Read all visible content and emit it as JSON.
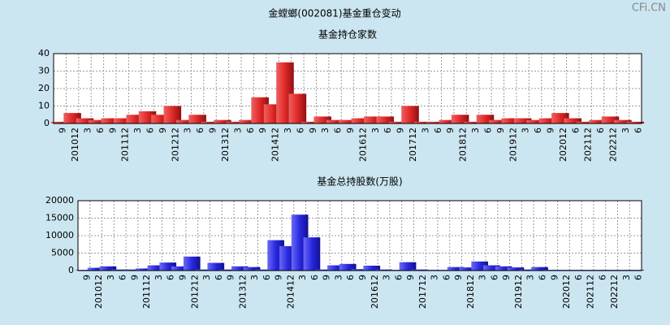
{
  "title": "金螳螂(002081)基金重仓变动",
  "watermark": "CFi.CN",
  "chart_data": [
    {
      "type": "bar",
      "title": "基金持仓家数",
      "color": "#e02828",
      "categories": [
        "9",
        "201012",
        "3",
        "6",
        "9",
        "201112",
        "3",
        "6",
        "9",
        "201212",
        "3",
        "6",
        "9",
        "201312",
        "3",
        "6",
        "9",
        "201412",
        "3",
        "6",
        "9",
        "3",
        "6",
        "9",
        "201612",
        "3",
        "6",
        "9",
        "201712",
        "3",
        "6",
        "9",
        "201812",
        "3",
        "6",
        "9",
        "201912",
        "3",
        "6",
        "9",
        "202012",
        "6",
        "202112",
        "6",
        "202212",
        "3",
        "6"
      ],
      "values": [
        1,
        6,
        3,
        2,
        3,
        3,
        5,
        7,
        5,
        10,
        2,
        5,
        1,
        2,
        1,
        2,
        15,
        11,
        35,
        17,
        1,
        4,
        2,
        2,
        3,
        4,
        4,
        1,
        10,
        1,
        1,
        2,
        5,
        1,
        5,
        2,
        3,
        3,
        2,
        3,
        6,
        3,
        1,
        2,
        4,
        2,
        1
      ],
      "ylim": [
        0,
        40
      ],
      "yticks": [
        0,
        10,
        20,
        30,
        40
      ],
      "grid": true
    },
    {
      "type": "bar",
      "title": "基金总持股数(万股)",
      "color": "#2828e0",
      "categories": [
        "9",
        "201012",
        "3",
        "6",
        "9",
        "201112",
        "3",
        "6",
        "9",
        "201212",
        "3",
        "6",
        "9",
        "201312",
        "3",
        "6",
        "9",
        "201412",
        "3",
        "6",
        "9",
        "3",
        "6",
        "9",
        "201612",
        "3",
        "6",
        "9",
        "201712",
        "3",
        "6",
        "9",
        "201812",
        "3",
        "6",
        "9",
        "201912",
        "3",
        "6",
        "9",
        "202012",
        "6",
        "202112",
        "6",
        "202212",
        "3",
        "6"
      ],
      "values": [
        200,
        800,
        1200,
        300,
        300,
        600,
        1500,
        2300,
        1200,
        4000,
        300,
        2200,
        300,
        1200,
        1000,
        300,
        8700,
        7000,
        16000,
        9500,
        300,
        1500,
        1900,
        400,
        1400,
        300,
        200,
        2400,
        300,
        200,
        200,
        1000,
        900,
        2600,
        1500,
        1200,
        900,
        300,
        1000,
        200,
        200,
        200,
        200,
        200,
        200,
        200,
        200
      ],
      "ylim": [
        0,
        20000
      ],
      "yticks": [
        0,
        5000,
        10000,
        15000,
        20000
      ],
      "grid": true
    }
  ]
}
